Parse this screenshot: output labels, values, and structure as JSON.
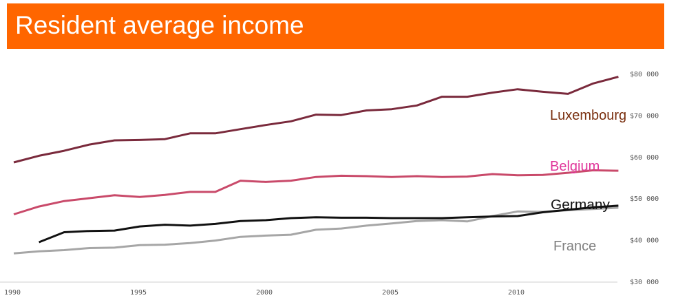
{
  "title": "Resident average income",
  "chart_data": {
    "type": "line",
    "title": "Resident average income",
    "xlabel": "",
    "ylabel": "",
    "xlim": [
      1990,
      2014
    ],
    "ylim": [
      30000,
      80000
    ],
    "x_ticks": [
      1990,
      1995,
      2000,
      2005,
      2010
    ],
    "x_tick_labels": [
      "1990",
      "1995",
      "2000",
      "2005",
      "2010"
    ],
    "y_ticks": [
      30000,
      40000,
      50000,
      60000,
      70000,
      80000
    ],
    "y_tick_labels": [
      "$30 000",
      "$40 000",
      "$50 000",
      "$60 000",
      "$70 000",
      "$80 000"
    ],
    "y_axis_position": "right",
    "grid": false,
    "legend": "inline labels at right end of lines",
    "series": [
      {
        "name": "Luxembourg",
        "color": "#7a2a3c",
        "label_color": "#7a3010",
        "x": [
          1990,
          1991,
          1992,
          1993,
          1994,
          1995,
          1996,
          1997,
          1998,
          1999,
          2000,
          2001,
          2002,
          2003,
          2004,
          2005,
          2006,
          2007,
          2008,
          2009,
          2010,
          2011,
          2012,
          2013,
          2014
        ],
        "values": [
          58800,
          60400,
          61600,
          63100,
          64100,
          64200,
          64400,
          65800,
          65800,
          66800,
          67800,
          68700,
          70300,
          70200,
          71300,
          71600,
          72500,
          74600,
          74600,
          75600,
          76400,
          75800,
          75300,
          77800,
          79400
        ]
      },
      {
        "name": "Belgium",
        "color": "#c94a6a",
        "label_color": "#e0359a",
        "x": [
          1990,
          1991,
          1992,
          1993,
          1994,
          1995,
          1996,
          1997,
          1998,
          1999,
          2000,
          2001,
          2002,
          2003,
          2004,
          2005,
          2006,
          2007,
          2008,
          2009,
          2010,
          2011,
          2012,
          2013,
          2014
        ],
        "values": [
          46300,
          48200,
          49500,
          50200,
          50900,
          50500,
          51000,
          51700,
          51700,
          54400,
          54100,
          54400,
          55300,
          55600,
          55500,
          55300,
          55500,
          55300,
          55400,
          56000,
          55700,
          55800,
          56300,
          56900,
          56800
        ]
      },
      {
        "name": "Germany",
        "color": "#111111",
        "label_color": "#111111",
        "x": [
          1991,
          1992,
          1993,
          1994,
          1995,
          1996,
          1997,
          1998,
          1999,
          2000,
          2001,
          2002,
          2003,
          2004,
          2005,
          2006,
          2007,
          2008,
          2009,
          2010,
          2011,
          2012,
          2013,
          2014
        ],
        "values": [
          39600,
          42000,
          42300,
          42400,
          43400,
          43800,
          43600,
          44000,
          44700,
          44900,
          45400,
          45600,
          45500,
          45500,
          45400,
          45400,
          45400,
          45600,
          45800,
          45900,
          46800,
          47400,
          48000,
          48400
        ]
      },
      {
        "name": "France",
        "color": "#a6a6a6",
        "label_color": "#808080",
        "x": [
          1990,
          1991,
          1992,
          1993,
          1994,
          1995,
          1996,
          1997,
          1998,
          1999,
          2000,
          2001,
          2002,
          2003,
          2004,
          2005,
          2006,
          2007,
          2008,
          2009,
          2010,
          2011,
          2012,
          2013,
          2014
        ],
        "values": [
          36900,
          37400,
          37700,
          38200,
          38300,
          38900,
          39000,
          39400,
          40000,
          40900,
          41200,
          41400,
          42600,
          42900,
          43600,
          44100,
          44700,
          44900,
          44600,
          45900,
          47000,
          46900,
          47300,
          47600,
          47900
        ]
      }
    ]
  },
  "labels": {
    "luxembourg": "Luxembourg",
    "belgium": "Belgium",
    "germany": "Germany",
    "france": "France"
  }
}
